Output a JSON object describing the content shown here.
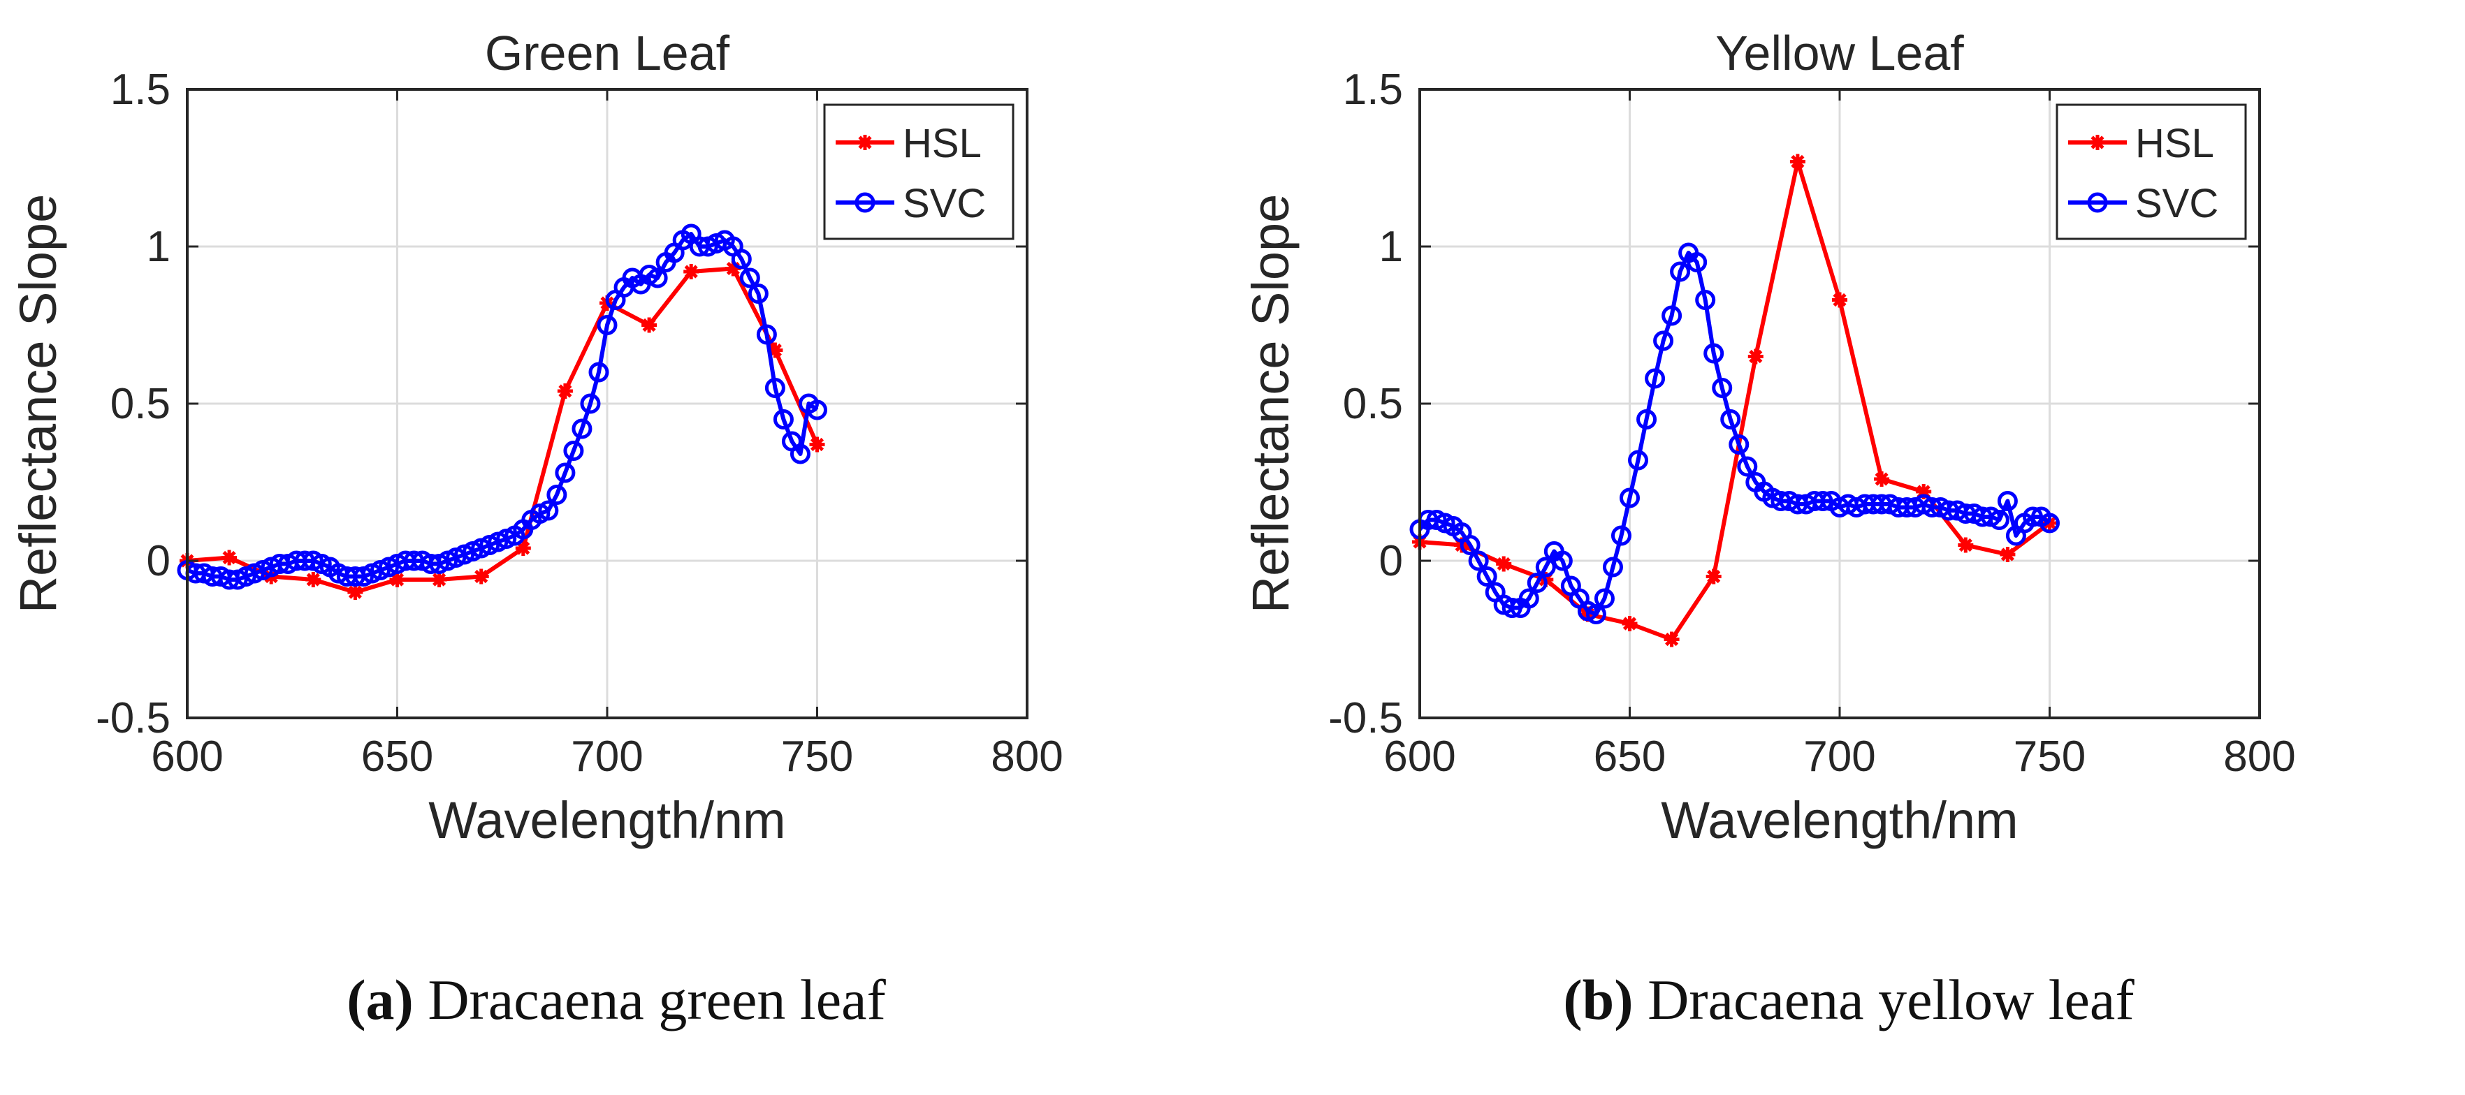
{
  "chart_data": [
    {
      "type": "line",
      "title": "Green Leaf",
      "xlabel": "Wavelength/nm",
      "ylabel": "Reflectance Slope",
      "xlim": [
        600,
        800
      ],
      "ylim": [
        -0.5,
        1.5
      ],
      "xticks": [
        600,
        650,
        700,
        750,
        800
      ],
      "yticks": [
        -0.5,
        0,
        0.5,
        1,
        1.5
      ],
      "xtick_labels": [
        "600",
        "650",
        "700",
        "750",
        "800"
      ],
      "ytick_labels": [
        "-0.5",
        "0",
        "0.5",
        "1",
        "1.5"
      ],
      "grid": true,
      "legend_position": "top-right",
      "series": [
        {
          "name": "HSL",
          "color": "#ff0000",
          "marker": "asterisk",
          "x": [
            600,
            610,
            620,
            630,
            640,
            650,
            660,
            670,
            680,
            690,
            700,
            710,
            720,
            730,
            740,
            750
          ],
          "y": [
            0.0,
            0.01,
            -0.05,
            -0.06,
            -0.1,
            -0.06,
            -0.06,
            -0.05,
            0.04,
            0.54,
            0.82,
            0.75,
            0.92,
            0.93,
            0.67,
            0.37
          ]
        },
        {
          "name": "SVC",
          "color": "#0000ff",
          "marker": "circle",
          "x": [
            600,
            602,
            604,
            606,
            608,
            610,
            612,
            614,
            616,
            618,
            620,
            622,
            624,
            626,
            628,
            630,
            632,
            634,
            636,
            638,
            640,
            642,
            644,
            646,
            648,
            650,
            652,
            654,
            656,
            658,
            660,
            662,
            664,
            666,
            668,
            670,
            672,
            674,
            676,
            678,
            680,
            682,
            684,
            686,
            688,
            690,
            692,
            694,
            696,
            698,
            700,
            702,
            704,
            706,
            708,
            710,
            712,
            714,
            716,
            718,
            720,
            722,
            724,
            726,
            728,
            730,
            732,
            734,
            736,
            738,
            740,
            742,
            744,
            746,
            748,
            750
          ],
          "y": [
            -0.03,
            -0.04,
            -0.04,
            -0.05,
            -0.05,
            -0.06,
            -0.06,
            -0.05,
            -0.04,
            -0.03,
            -0.02,
            -0.01,
            -0.01,
            0.0,
            0.0,
            0.0,
            -0.01,
            -0.02,
            -0.04,
            -0.05,
            -0.05,
            -0.05,
            -0.04,
            -0.03,
            -0.02,
            -0.01,
            0.0,
            0.0,
            0.0,
            -0.01,
            -0.01,
            0.0,
            0.01,
            0.02,
            0.03,
            0.04,
            0.05,
            0.06,
            0.07,
            0.08,
            0.1,
            0.13,
            0.15,
            0.16,
            0.21,
            0.28,
            0.35,
            0.42,
            0.5,
            0.6,
            0.75,
            0.83,
            0.87,
            0.9,
            0.88,
            0.91,
            0.9,
            0.95,
            0.98,
            1.02,
            1.04,
            1.0,
            1.0,
            1.01,
            1.02,
            1.0,
            0.96,
            0.9,
            0.85,
            0.72,
            0.55,
            0.45,
            0.38,
            0.34,
            0.5,
            0.48
          ]
        }
      ]
    },
    {
      "type": "line",
      "title": "Yellow Leaf",
      "xlabel": "Wavelength/nm",
      "ylabel": "Reflectance Slope",
      "xlim": [
        600,
        800
      ],
      "ylim": [
        -0.5,
        1.5
      ],
      "xticks": [
        600,
        650,
        700,
        750,
        800
      ],
      "yticks": [
        -0.5,
        0,
        0.5,
        1,
        1.5
      ],
      "xtick_labels": [
        "600",
        "650",
        "700",
        "750",
        "800"
      ],
      "ytick_labels": [
        "-0.5",
        "0",
        "0.5",
        "1",
        "1.5"
      ],
      "grid": true,
      "legend_position": "top-right",
      "series": [
        {
          "name": "HSL",
          "color": "#ff0000",
          "marker": "asterisk",
          "x": [
            600,
            610,
            620,
            630,
            640,
            650,
            660,
            670,
            680,
            690,
            700,
            710,
            720,
            730,
            740,
            750
          ],
          "y": [
            0.06,
            0.05,
            -0.01,
            -0.06,
            -0.17,
            -0.2,
            -0.25,
            -0.05,
            0.65,
            1.27,
            0.83,
            0.26,
            0.22,
            0.05,
            0.02,
            0.12
          ]
        },
        {
          "name": "SVC",
          "color": "#0000ff",
          "marker": "circle",
          "x": [
            600,
            602,
            604,
            606,
            608,
            610,
            612,
            614,
            616,
            618,
            620,
            622,
            624,
            626,
            628,
            630,
            632,
            634,
            636,
            638,
            640,
            642,
            644,
            646,
            648,
            650,
            652,
            654,
            656,
            658,
            660,
            662,
            664,
            666,
            668,
            670,
            672,
            674,
            676,
            678,
            680,
            682,
            684,
            686,
            688,
            690,
            692,
            694,
            696,
            698,
            700,
            702,
            704,
            706,
            708,
            710,
            712,
            714,
            716,
            718,
            720,
            722,
            724,
            726,
            728,
            730,
            732,
            734,
            736,
            738,
            740,
            742,
            744,
            746,
            748,
            750
          ],
          "y": [
            0.1,
            0.13,
            0.13,
            0.12,
            0.11,
            0.09,
            0.05,
            0.0,
            -0.05,
            -0.1,
            -0.14,
            -0.15,
            -0.15,
            -0.12,
            -0.07,
            -0.02,
            0.03,
            0.0,
            -0.08,
            -0.12,
            -0.16,
            -0.17,
            -0.12,
            -0.02,
            0.08,
            0.2,
            0.32,
            0.45,
            0.58,
            0.7,
            0.78,
            0.92,
            0.98,
            0.95,
            0.83,
            0.66,
            0.55,
            0.45,
            0.37,
            0.3,
            0.25,
            0.22,
            0.2,
            0.19,
            0.19,
            0.18,
            0.18,
            0.19,
            0.19,
            0.19,
            0.17,
            0.18,
            0.17,
            0.18,
            0.18,
            0.18,
            0.18,
            0.17,
            0.17,
            0.17,
            0.18,
            0.17,
            0.17,
            0.16,
            0.16,
            0.15,
            0.15,
            0.14,
            0.14,
            0.13,
            0.19,
            0.08,
            0.12,
            0.14,
            0.14,
            0.12
          ]
        }
      ]
    }
  ],
  "captions": [
    {
      "label": "(a)",
      "text": "Dracaena green leaf"
    },
    {
      "label": "(b)",
      "text": "Dracaena yellow leaf"
    }
  ]
}
